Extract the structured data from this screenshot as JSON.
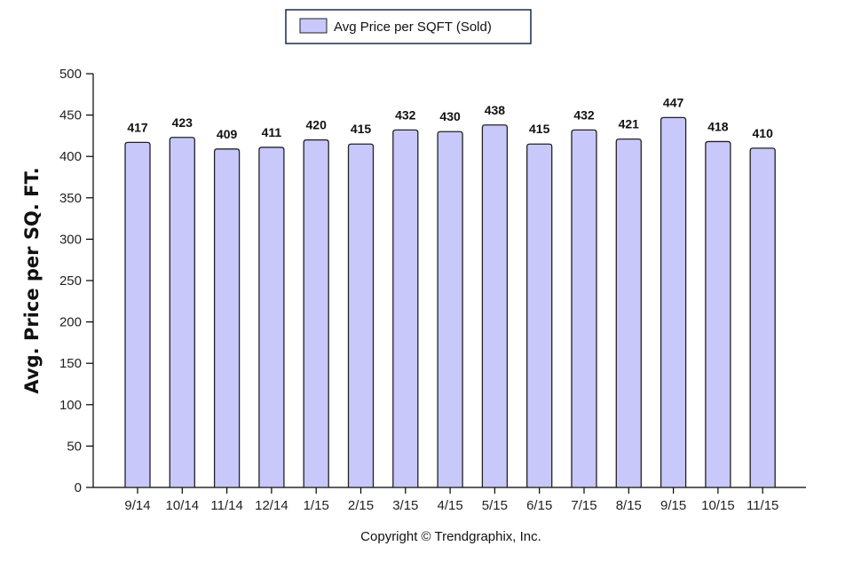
{
  "chart_data": {
    "type": "bar",
    "categories": [
      "9/14",
      "10/14",
      "11/14",
      "12/14",
      "1/15",
      "2/15",
      "3/15",
      "4/15",
      "5/15",
      "6/15",
      "7/15",
      "8/15",
      "9/15",
      "10/15",
      "11/15"
    ],
    "series": [
      {
        "name": "Avg Price per SQFT (Sold)",
        "values": [
          417,
          423,
          409,
          411,
          420,
          415,
          432,
          430,
          438,
          415,
          432,
          421,
          447,
          418,
          410
        ]
      }
    ],
    "ylabel": "Avg. Price per SQ. FT.",
    "xlabel": "",
    "ylim": [
      0,
      500
    ],
    "yticks": [
      0,
      50,
      100,
      150,
      200,
      250,
      300,
      350,
      400,
      450,
      500
    ],
    "grid": false,
    "legend": "top-left",
    "data_labels": true,
    "colors": {
      "bar_fill": "#c8c8fa",
      "bar_stroke": "#222222"
    }
  },
  "footer": {
    "copyright": "Copyright © Trendgraphix, Inc."
  }
}
